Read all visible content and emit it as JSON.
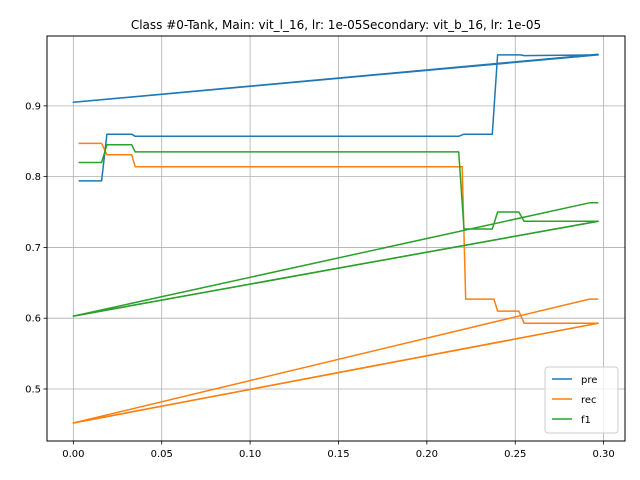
{
  "chart_data": {
    "type": "line",
    "title": "Class #0-Tank, Main: vit_l_16, lr: 1e-05Secondary: vit_b_16, lr: 1e-05",
    "xlabel": "",
    "ylabel": "",
    "xlim": [
      -0.0149,
      0.3121
    ],
    "ylim": [
      0.4265,
      0.9987
    ],
    "xticks": [
      "0.00",
      "0.05",
      "0.10",
      "0.15",
      "0.20",
      "0.25",
      "0.30"
    ],
    "xtick_values": [
      0.0,
      0.05,
      0.1,
      0.15,
      0.2,
      0.25,
      0.3
    ],
    "yticks": [
      "0.5",
      "0.6",
      "0.7",
      "0.8",
      "0.9"
    ],
    "ytick_values": [
      0.5,
      0.6,
      0.7,
      0.8,
      0.9
    ],
    "grid": true,
    "legend_position": "lower-right",
    "series": [
      {
        "name": "pre",
        "color": "#1f77b4",
        "x": [
          0.003,
          0.016,
          0.019,
          0.033,
          0.035,
          0.218,
          0.221,
          0.237,
          0.24,
          0.253,
          0.255,
          0.297,
          0.0,
          0.297
        ],
        "y": [
          0.794,
          0.794,
          0.86,
          0.86,
          0.857,
          0.857,
          0.86,
          0.86,
          0.972,
          0.972,
          0.971,
          0.972,
          0.905,
          0.973
        ]
      },
      {
        "name": "rec",
        "color": "#ff7f0e",
        "x": [
          0.003,
          0.016,
          0.019,
          0.033,
          0.035,
          0.22,
          0.222,
          0.238,
          0.24,
          0.252,
          0.255,
          0.297,
          0.0,
          0.292,
          0.297
        ],
        "y": [
          0.847,
          0.847,
          0.831,
          0.831,
          0.814,
          0.814,
          0.627,
          0.627,
          0.61,
          0.61,
          0.593,
          0.593,
          0.452,
          0.627,
          0.627
        ]
      },
      {
        "name": "rec_b",
        "color": "#ff7f0e",
        "x": [
          0.0,
          0.297
        ],
        "y": [
          0.452,
          0.593
        ]
      },
      {
        "name": "f1",
        "color": "#2ca02c",
        "x": [
          0.003,
          0.016,
          0.019,
          0.033,
          0.035,
          0.218,
          0.221,
          0.237,
          0.24,
          0.252,
          0.255,
          0.297,
          0.0,
          0.292,
          0.297
        ],
        "y": [
          0.82,
          0.82,
          0.845,
          0.845,
          0.835,
          0.835,
          0.726,
          0.726,
          0.75,
          0.75,
          0.737,
          0.737,
          0.603,
          0.763,
          0.763
        ]
      },
      {
        "name": "f1_b",
        "color": "#2ca02c",
        "x": [
          0.0,
          0.297
        ],
        "y": [
          0.603,
          0.737
        ]
      }
    ],
    "legend": [
      "pre",
      "rec",
      "f1"
    ]
  }
}
